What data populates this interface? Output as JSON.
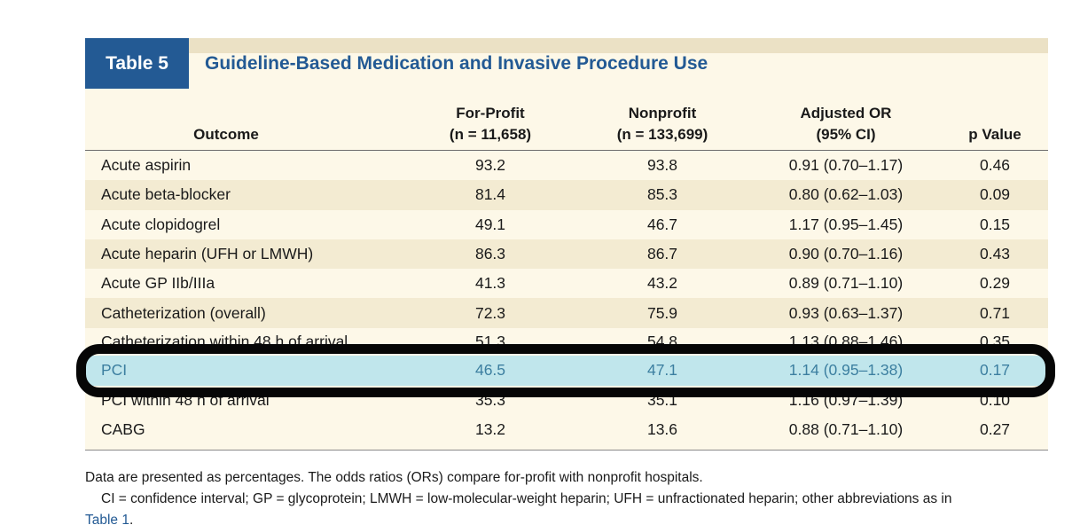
{
  "table": {
    "number": "Table 5",
    "title": "Guideline-Based Medication and Invasive Procedure Use",
    "columns": [
      {
        "line1": "",
        "line2": "Outcome"
      },
      {
        "line1": "For-Profit",
        "line2": "(n = 11,658)"
      },
      {
        "line1": "Nonprofit",
        "line2": "(n = 133,699)"
      },
      {
        "line1": "Adjusted OR",
        "line2": "(95% CI)"
      },
      {
        "line1": "",
        "line2": "p Value"
      }
    ],
    "rows": [
      [
        "Acute aspirin",
        "93.2",
        "93.8",
        "0.91 (0.70–1.17)",
        "0.46"
      ],
      [
        "Acute beta-blocker",
        "81.4",
        "85.3",
        "0.80 (0.62–1.03)",
        "0.09"
      ],
      [
        "Acute clopidogrel",
        "49.1",
        "46.7",
        "1.17 (0.95–1.45)",
        "0.15"
      ],
      [
        "Acute heparin (UFH or LMWH)",
        "86.3",
        "86.7",
        "0.90 (0.70–1.16)",
        "0.43"
      ],
      [
        "Acute GP IIb/IIIa",
        "41.3",
        "43.2",
        "0.89 (0.71–1.10)",
        "0.29"
      ],
      [
        "Catheterization (overall)",
        "72.3",
        "75.9",
        "0.93 (0.63–1.37)",
        "0.71"
      ],
      [
        "Catheterization within 48 h of arrival",
        "51.3",
        "54.8",
        "1.13 (0.88–1.46)",
        "0.35"
      ],
      [
        "PCI",
        "46.5",
        "47.1",
        "1.14 (0.95–1.38)",
        "0.17"
      ],
      [
        "PCI within 48 h of arrival",
        "35.3",
        "35.1",
        "1.16 (0.97–1.39)",
        "0.10"
      ],
      [
        "CABG",
        "13.2",
        "13.6",
        "0.88 (0.71–1.10)",
        "0.27"
      ]
    ]
  },
  "footnote": {
    "line1": "Data are presented as percentages. The odds ratios (ORs) compare for-profit with nonprofit hospitals.",
    "line2": "CI = confidence interval; GP = glycoprotein; LMWH = low-molecular-weight heparin; UFH = unfractionated heparin; other abbreviations as in",
    "link": "Table 1",
    "end": "."
  },
  "colors": {
    "header_blue": "#235a94",
    "title_band": "#ebe1c5",
    "highlight_row": "#c0e6ec",
    "highlight_ring": "#060606"
  }
}
